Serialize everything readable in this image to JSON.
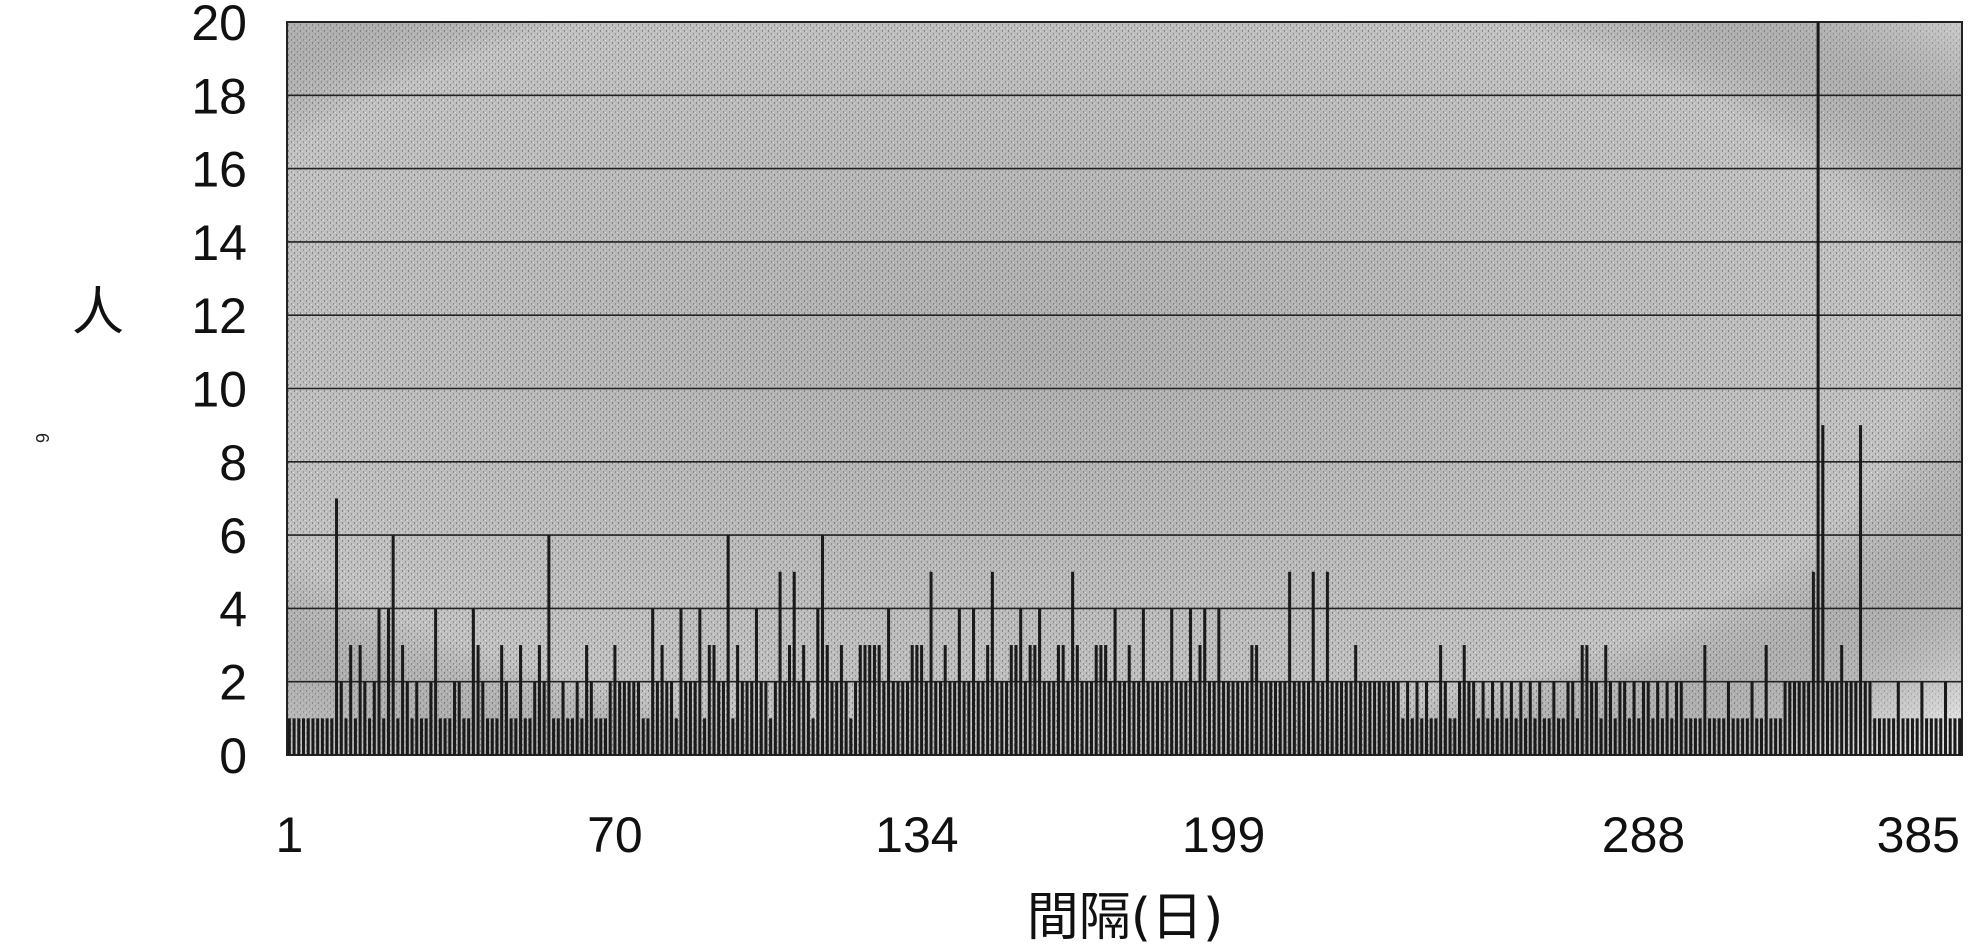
{
  "page_number": "6",
  "colors": {
    "background": "#ffffff",
    "plot_shading": "#bdbdbd",
    "bar": "#1a1a1a",
    "grid": "#222222"
  },
  "chart_data": {
    "type": "bar",
    "title": "",
    "xlabel": "間隔(日)",
    "ylabel": "人",
    "ylim": [
      0,
      20
    ],
    "yticks": [
      "0",
      "2",
      "4",
      "6",
      "8",
      "10",
      "12",
      "14",
      "16",
      "18",
      "20"
    ],
    "xtick_labels": [
      {
        "label": "1",
        "index": 0
      },
      {
        "label": "70",
        "index": 69
      },
      {
        "label": "134",
        "index": 133
      },
      {
        "label": "199",
        "index": 198
      },
      {
        "label": "288",
        "index": 287
      },
      {
        "label": "385",
        "index": 384
      }
    ],
    "grid": true,
    "series": [
      {
        "values": [
          1,
          1,
          1,
          1,
          1,
          1,
          1,
          1,
          1,
          1,
          7,
          2,
          1,
          3,
          1,
          3,
          2,
          1,
          2,
          4,
          1,
          4,
          6,
          1,
          3,
          2,
          1,
          2,
          1,
          1,
          2,
          4,
          1,
          1,
          1,
          2,
          2,
          1,
          1,
          4,
          3,
          2,
          1,
          1,
          1,
          3,
          2,
          1,
          1,
          3,
          1,
          1,
          2,
          3,
          2,
          6,
          1,
          1,
          2,
          1,
          1,
          2,
          1,
          3,
          2,
          1,
          1,
          1,
          2,
          3,
          2,
          2,
          2,
          2,
          2,
          1,
          1,
          4,
          2,
          3,
          2,
          2,
          1,
          4,
          2,
          2,
          2,
          4,
          1,
          3,
          3,
          2,
          2,
          6,
          1,
          3,
          2,
          2,
          2,
          4,
          2,
          2,
          1,
          2,
          5,
          2,
          3,
          5,
          2,
          3,
          2,
          1,
          4,
          6,
          3,
          2,
          2,
          3,
          2,
          1,
          2,
          3,
          3,
          3,
          3,
          3,
          2,
          4,
          2,
          2,
          2,
          2,
          3,
          3,
          3,
          2,
          5,
          2,
          2,
          3,
          2,
          2,
          4,
          2,
          2,
          4,
          2,
          2,
          3,
          5,
          2,
          2,
          2,
          3,
          3,
          4,
          2,
          3,
          3,
          4,
          2,
          2,
          2,
          3,
          3,
          2,
          5,
          3,
          2,
          2,
          2,
          3,
          3,
          3,
          2,
          4,
          2,
          2,
          3,
          2,
          2,
          4,
          2,
          2,
          2,
          2,
          2,
          4,
          2,
          2,
          2,
          4,
          2,
          3,
          4,
          2,
          2,
          4,
          2,
          2,
          2,
          2,
          2,
          2,
          3,
          3,
          2,
          2,
          2,
          2,
          2,
          2,
          5,
          2,
          2,
          2,
          2,
          5,
          2,
          2,
          5,
          2,
          2,
          2,
          2,
          2,
          3,
          2,
          2,
          2,
          2,
          2,
          2,
          2,
          2,
          2,
          1,
          2,
          1,
          2,
          1,
          2,
          1,
          1,
          3,
          2,
          1,
          1,
          2,
          3,
          2,
          2,
          1,
          2,
          1,
          2,
          1,
          2,
          1,
          2,
          1,
          2,
          1,
          2,
          1,
          2,
          1,
          1,
          2,
          1,
          1,
          2,
          2,
          1,
          3,
          3,
          2,
          2,
          1,
          3,
          2,
          1,
          2,
          2,
          1,
          2,
          1,
          2,
          2,
          1,
          2,
          1,
          2,
          1,
          2,
          2,
          1,
          1,
          1,
          1,
          3,
          1,
          1,
          1,
          1,
          2,
          1,
          1,
          1,
          1,
          2,
          1,
          1,
          3,
          1,
          1,
          1,
          2,
          2,
          2,
          2,
          2,
          2,
          5,
          20,
          9,
          2,
          2,
          2,
          3,
          2,
          2,
          2,
          9,
          2,
          2,
          1,
          1,
          1,
          1,
          1,
          2,
          1,
          1,
          1,
          1,
          2,
          1,
          1,
          1,
          1,
          2,
          1,
          1,
          1
        ]
      }
    ]
  }
}
